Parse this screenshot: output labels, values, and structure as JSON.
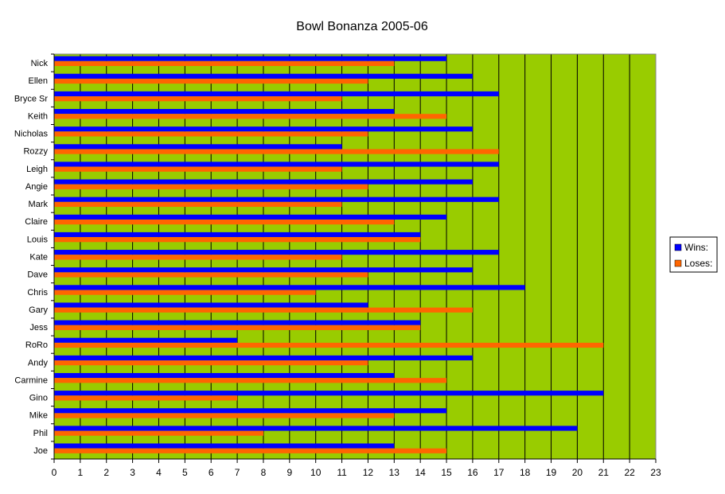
{
  "chart_data": {
    "type": "bar",
    "orientation": "horizontal",
    "title": "Bowl Bonanza 2005-06",
    "categories": [
      "Nick",
      "Ellen",
      "Bryce Sr",
      "Keith",
      "Nicholas",
      "Rozzy",
      "Leigh",
      "Angie",
      "Mark",
      "Claire",
      "Louis",
      "Kate",
      "Dave",
      "Chris",
      "Gary",
      "Jess",
      "RoRo",
      "Andy",
      "Carmine",
      "Gino",
      "Mike",
      "Phil",
      "Joe"
    ],
    "series": [
      {
        "name": "Wins:",
        "color": "#0000ff",
        "values": [
          15,
          16,
          17,
          13,
          16,
          11,
          17,
          16,
          17,
          15,
          14,
          17,
          16,
          18,
          12,
          14,
          7,
          16,
          13,
          21,
          15,
          20,
          13
        ]
      },
      {
        "name": "Loses:",
        "color": "#ff6600",
        "values": [
          13,
          12,
          11,
          15,
          12,
          17,
          11,
          12,
          11,
          13,
          14,
          11,
          12,
          10,
          16,
          14,
          21,
          12,
          15,
          7,
          13,
          8,
          15
        ]
      }
    ],
    "xlim": [
      0,
      23
    ],
    "xticks": [
      "0",
      "1",
      "2",
      "3",
      "4",
      "5",
      "6",
      "7",
      "8",
      "9",
      "10",
      "11",
      "12",
      "13",
      "14",
      "15",
      "16",
      "17",
      "18",
      "19",
      "20",
      "21",
      "22",
      "23"
    ],
    "grid": true,
    "plot_background": "#99cc00",
    "legend_position": "right"
  }
}
